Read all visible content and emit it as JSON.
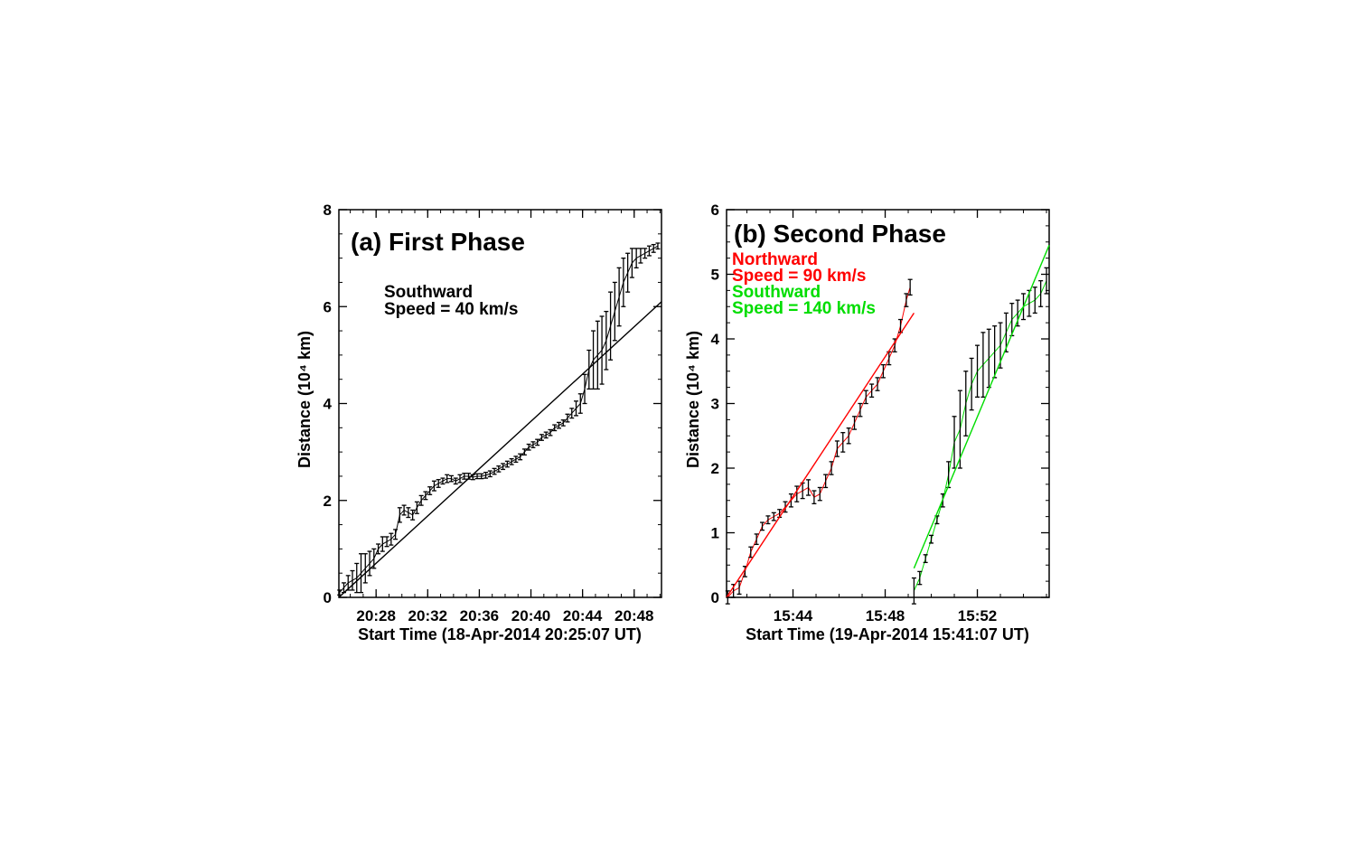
{
  "chart_data": [
    {
      "type": "scatter",
      "title": "(a) First Phase",
      "xlabel": "Start Time (18-Apr-2014 20:25:07 UT)",
      "ylabel": "Distance (10⁴ km)",
      "ylim": [
        0,
        8
      ],
      "xlim": [
        "20:25:07",
        "20:50:07"
      ],
      "xticks": [
        "20:28",
        "20:32",
        "20:36",
        "20:40",
        "20:44",
        "20:48"
      ],
      "yticks": [
        "0",
        "2",
        "4",
        "6",
        "8"
      ],
      "grid": false,
      "annotations": [
        {
          "text": "Southward",
          "color": "#000000"
        },
        {
          "text": "Speed = 40 km/s",
          "color": "#000000"
        }
      ],
      "series": [
        {
          "color": "#000000",
          "style": "points-with-errorbars",
          "x": [
            "20:25:10",
            "20:25:30",
            "20:25:50",
            "20:26:10",
            "20:26:30",
            "20:26:50",
            "20:27:10",
            "20:27:30",
            "20:27:50",
            "20:28:10",
            "20:28:30",
            "20:28:50",
            "20:29:10",
            "20:29:30",
            "20:29:50",
            "20:30:10",
            "20:30:30",
            "20:30:50",
            "20:31:10",
            "20:31:30",
            "20:31:50",
            "20:32:10",
            "20:32:30",
            "20:32:50",
            "20:33:10",
            "20:33:30",
            "20:33:50",
            "20:34:10",
            "20:34:30",
            "20:34:50",
            "20:35:10",
            "20:35:30",
            "20:35:50",
            "20:36:10",
            "20:36:30",
            "20:36:50",
            "20:37:10",
            "20:37:30",
            "20:37:50",
            "20:38:10",
            "20:38:30",
            "20:38:50",
            "20:39:10",
            "20:39:30",
            "20:39:50",
            "20:40:10",
            "20:40:30",
            "20:40:50",
            "20:41:10",
            "20:41:30",
            "20:41:50",
            "20:42:10",
            "20:42:30",
            "20:42:50",
            "20:43:10",
            "20:43:30",
            "20:43:50",
            "20:44:10",
            "20:44:30",
            "20:44:50",
            "20:45:10",
            "20:45:30",
            "20:45:50",
            "20:46:10",
            "20:46:30",
            "20:46:50",
            "20:47:10",
            "20:47:30",
            "20:47:50",
            "20:48:10",
            "20:48:30",
            "20:48:50",
            "20:49:10",
            "20:49:30",
            "20:49:50"
          ],
          "y": [
            0.1,
            0.2,
            0.3,
            0.35,
            0.4,
            0.5,
            0.6,
            0.7,
            0.8,
            1.0,
            1.1,
            1.15,
            1.2,
            1.3,
            1.7,
            1.8,
            1.75,
            1.7,
            1.85,
            2.0,
            2.1,
            2.2,
            2.3,
            2.35,
            2.4,
            2.45,
            2.45,
            2.4,
            2.45,
            2.5,
            2.5,
            2.48,
            2.5,
            2.5,
            2.52,
            2.55,
            2.6,
            2.65,
            2.7,
            2.75,
            2.8,
            2.85,
            2.9,
            3.0,
            3.1,
            3.15,
            3.2,
            3.3,
            3.35,
            3.4,
            3.5,
            3.55,
            3.6,
            3.7,
            3.8,
            3.9,
            4.0,
            4.3,
            4.7,
            4.9,
            5.0,
            5.1,
            5.3,
            5.6,
            5.9,
            6.2,
            6.5,
            6.7,
            6.9,
            7.0,
            7.05,
            7.1,
            7.15,
            7.2,
            7.25
          ],
          "yerr": [
            0.05,
            0.1,
            0.15,
            0.2,
            0.3,
            0.4,
            0.3,
            0.25,
            0.2,
            0.1,
            0.15,
            0.1,
            0.12,
            0.1,
            0.15,
            0.1,
            0.1,
            0.1,
            0.12,
            0.1,
            0.08,
            0.08,
            0.1,
            0.08,
            0.06,
            0.08,
            0.06,
            0.06,
            0.08,
            0.06,
            0.06,
            0.05,
            0.05,
            0.05,
            0.06,
            0.06,
            0.06,
            0.06,
            0.06,
            0.06,
            0.06,
            0.06,
            0.06,
            0.06,
            0.06,
            0.06,
            0.06,
            0.06,
            0.06,
            0.06,
            0.06,
            0.06,
            0.06,
            0.08,
            0.1,
            0.15,
            0.2,
            0.3,
            0.4,
            0.6,
            0.7,
            0.7,
            0.6,
            0.7,
            0.6,
            0.6,
            0.5,
            0.4,
            0.3,
            0.2,
            0.15,
            0.1,
            0.1,
            0.08,
            0.06
          ]
        },
        {
          "color": "#000000",
          "style": "fit-line",
          "x": [
            "20:25:07",
            "20:50:07"
          ],
          "y": [
            0.0,
            6.1
          ]
        }
      ]
    },
    {
      "type": "scatter",
      "title": "(b) Second Phase",
      "xlabel": "Start Time (19-Apr-2014 15:41:07 UT)",
      "ylabel": "Distance (10⁴ km)",
      "ylim": [
        0,
        6
      ],
      "xlim": [
        "15:41:07",
        "15:55:07"
      ],
      "xticks": [
        "15:44",
        "15:48",
        "15:52"
      ],
      "yticks": [
        "0",
        "1",
        "2",
        "3",
        "4",
        "5",
        "6"
      ],
      "grid": false,
      "annotations": [
        {
          "text": "Northward",
          "color": "#ff0000"
        },
        {
          "text": "Speed = 90 km/s",
          "color": "#ff0000"
        },
        {
          "text": "Southward",
          "color": "#00dd00"
        },
        {
          "text": "Speed = 140 km/s",
          "color": "#00dd00"
        }
      ],
      "series": [
        {
          "color": "#ff0000",
          "style": "points-with-errorbars",
          "x": [
            "15:41:10",
            "15:41:25",
            "15:41:40",
            "15:41:55",
            "15:42:10",
            "15:42:25",
            "15:42:40",
            "15:42:55",
            "15:43:10",
            "15:43:25",
            "15:43:40",
            "15:43:55",
            "15:44:10",
            "15:44:25",
            "15:44:40",
            "15:44:55",
            "15:45:10",
            "15:45:25",
            "15:45:40",
            "15:45:55",
            "15:46:10",
            "15:46:25",
            "15:46:40",
            "15:46:55",
            "15:47:10",
            "15:47:25",
            "15:47:40",
            "15:47:55",
            "15:48:10",
            "15:48:25",
            "15:48:40",
            "15:48:55",
            "15:49:05"
          ],
          "y": [
            0.0,
            0.1,
            0.15,
            0.4,
            0.7,
            0.9,
            1.1,
            1.2,
            1.25,
            1.3,
            1.4,
            1.5,
            1.6,
            1.65,
            1.7,
            1.55,
            1.6,
            1.8,
            2.0,
            2.3,
            2.4,
            2.5,
            2.7,
            2.9,
            3.1,
            3.2,
            3.3,
            3.5,
            3.7,
            3.9,
            4.2,
            4.6,
            4.8
          ],
          "yerr": [
            0.1,
            0.1,
            0.1,
            0.08,
            0.08,
            0.08,
            0.06,
            0.06,
            0.06,
            0.06,
            0.08,
            0.1,
            0.12,
            0.12,
            0.12,
            0.1,
            0.1,
            0.1,
            0.1,
            0.12,
            0.15,
            0.12,
            0.1,
            0.1,
            0.1,
            0.1,
            0.1,
            0.1,
            0.1,
            0.1,
            0.1,
            0.1,
            0.12
          ]
        },
        {
          "color": "#ff0000",
          "style": "fit-line",
          "x": [
            "15:41:07",
            "15:49:15"
          ],
          "y": [
            0.0,
            4.4
          ]
        },
        {
          "color": "#00dd00",
          "style": "points-with-errorbars",
          "x": [
            "15:49:15",
            "15:49:30",
            "15:49:45",
            "15:50:00",
            "15:50:15",
            "15:50:30",
            "15:50:45",
            "15:51:00",
            "15:51:15",
            "15:51:30",
            "15:51:45",
            "15:52:00",
            "15:52:15",
            "15:52:30",
            "15:52:45",
            "15:53:00",
            "15:53:15",
            "15:53:30",
            "15:53:45",
            "15:54:00",
            "15:54:15",
            "15:54:30",
            "15:54:45",
            "15:55:00"
          ],
          "y": [
            0.1,
            0.3,
            0.6,
            0.9,
            1.2,
            1.5,
            1.9,
            2.4,
            2.6,
            3.0,
            3.3,
            3.5,
            3.6,
            3.7,
            3.8,
            3.9,
            4.1,
            4.3,
            4.4,
            4.5,
            4.55,
            4.6,
            4.7,
            4.9
          ],
          "yerr": [
            0.2,
            0.1,
            0.06,
            0.06,
            0.06,
            0.1,
            0.2,
            0.4,
            0.6,
            0.5,
            0.4,
            0.4,
            0.5,
            0.45,
            0.4,
            0.35,
            0.3,
            0.25,
            0.2,
            0.2,
            0.2,
            0.2,
            0.2,
            0.2
          ]
        },
        {
          "color": "#00dd00",
          "style": "fit-line",
          "x": [
            "15:49:15",
            "15:55:07"
          ],
          "y": [
            0.45,
            5.45
          ]
        }
      ]
    }
  ]
}
